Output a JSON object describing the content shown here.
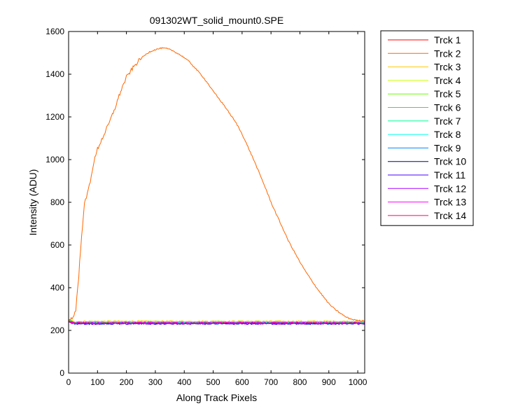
{
  "chart_data": {
    "type": "line",
    "title": "091302WT_solid_mount0.SPE",
    "xlabel": "Along Track Pixels",
    "ylabel": "Intensity (ADU)",
    "xlim": [
      0,
      1024
    ],
    "ylim": [
      0,
      1600
    ],
    "xticks": [
      0,
      100,
      200,
      300,
      400,
      500,
      600,
      700,
      800,
      900,
      1000
    ],
    "yticks": [
      0,
      200,
      400,
      600,
      800,
      1000,
      1200,
      1400,
      1600
    ],
    "grid": false,
    "legend_position": "outside-top-right",
    "series": [
      {
        "name": "Trck 1",
        "color": "#ff0000",
        "baseline": 236
      },
      {
        "name": "Trck 2",
        "color": "#ff6600",
        "points": [
          [
            0,
            250
          ],
          [
            15,
            258
          ],
          [
            25,
            300
          ],
          [
            35,
            450
          ],
          [
            45,
            650
          ],
          [
            55,
            790
          ],
          [
            65,
            840
          ],
          [
            75,
            900
          ],
          [
            85,
            975
          ],
          [
            100,
            1050
          ],
          [
            120,
            1110
          ],
          [
            140,
            1170
          ],
          [
            160,
            1240
          ],
          [
            180,
            1320
          ],
          [
            200,
            1385
          ],
          [
            220,
            1425
          ],
          [
            240,
            1460
          ],
          [
            260,
            1485
          ],
          [
            280,
            1505
          ],
          [
            300,
            1515
          ],
          [
            320,
            1522
          ],
          [
            340,
            1520
          ],
          [
            360,
            1510
          ],
          [
            380,
            1495
          ],
          [
            400,
            1478
          ],
          [
            420,
            1455
          ],
          [
            440,
            1425
          ],
          [
            460,
            1395
          ],
          [
            480,
            1360
          ],
          [
            500,
            1320
          ],
          [
            520,
            1285
          ],
          [
            540,
            1250
          ],
          [
            560,
            1210
          ],
          [
            580,
            1170
          ],
          [
            600,
            1120
          ],
          [
            620,
            1060
          ],
          [
            640,
            1000
          ],
          [
            660,
            935
          ],
          [
            680,
            870
          ],
          [
            700,
            800
          ],
          [
            720,
            740
          ],
          [
            740,
            680
          ],
          [
            760,
            620
          ],
          [
            780,
            570
          ],
          [
            800,
            520
          ],
          [
            820,
            475
          ],
          [
            840,
            435
          ],
          [
            860,
            395
          ],
          [
            880,
            360
          ],
          [
            900,
            325
          ],
          [
            920,
            300
          ],
          [
            940,
            280
          ],
          [
            960,
            262
          ],
          [
            980,
            252
          ],
          [
            1000,
            246
          ],
          [
            1024,
            245
          ]
        ]
      },
      {
        "name": "Trck 3",
        "color": "#ffcc00",
        "baseline": 242
      },
      {
        "name": "Trck 4",
        "color": "#ccff00",
        "baseline": 239
      },
      {
        "name": "Trck 5",
        "color": "#66ff00",
        "baseline": 240
      },
      {
        "name": "Trck 6",
        "color": "#00ff44",
        "baseline": 237
      },
      {
        "name": "Trck 7",
        "color": "#00ff99",
        "baseline": 238
      },
      {
        "name": "Trck 8",
        "color": "#00ffee",
        "baseline": 235
      },
      {
        "name": "Trck 9",
        "color": "#0088ff",
        "baseline": 232
      },
      {
        "name": "Trck 10",
        "color": "#000080",
        "baseline": 233
      },
      {
        "name": "Trck 11",
        "color": "#4400ff",
        "baseline": 231
      },
      {
        "name": "Trck 12",
        "color": "#aa00ff",
        "baseline": 234
      },
      {
        "name": "Trck 13",
        "color": "#ff00ff",
        "baseline": 236
      },
      {
        "name": "Trck 14",
        "color": "#ff0066",
        "baseline": 233
      }
    ]
  }
}
